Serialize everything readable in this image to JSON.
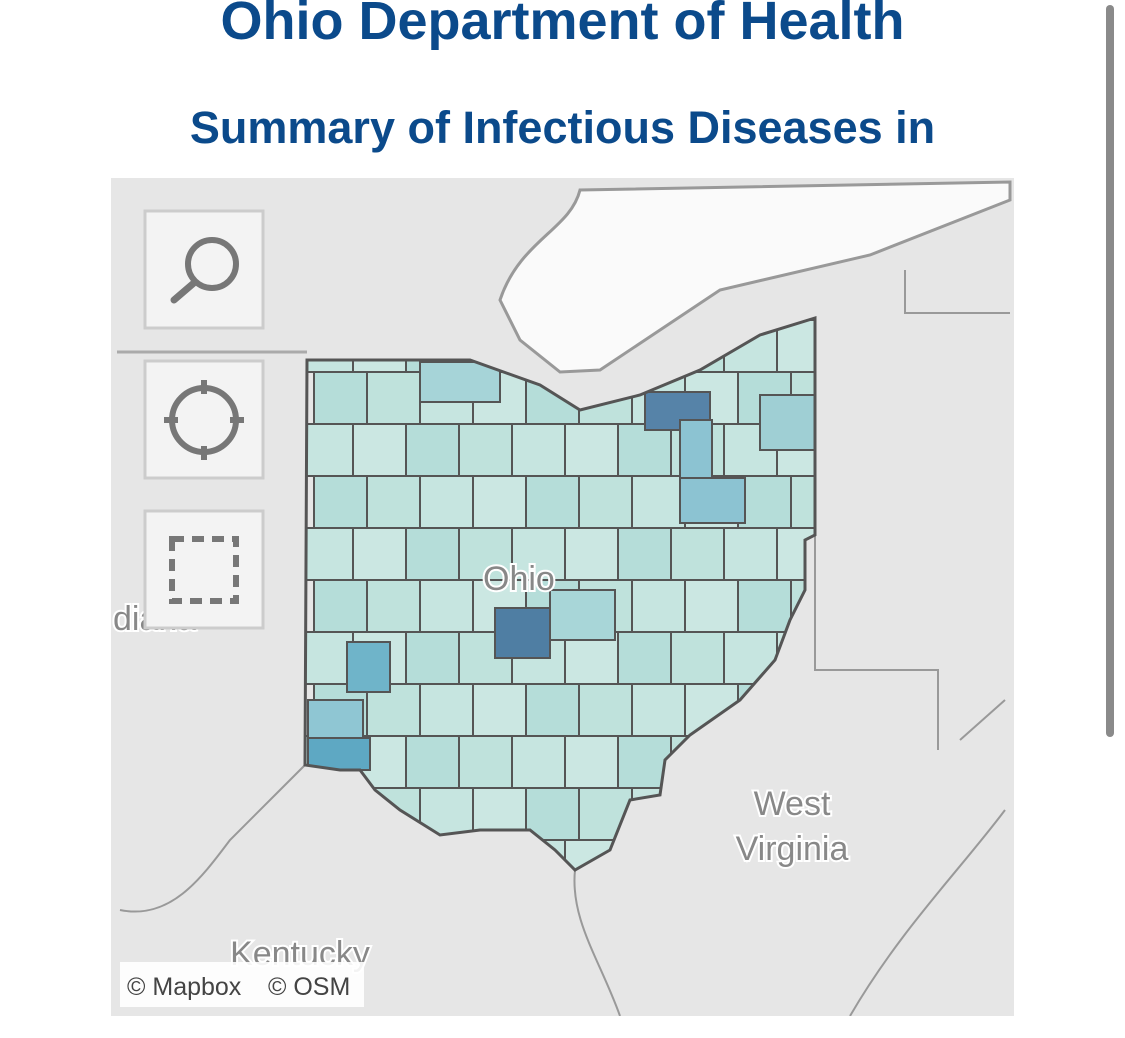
{
  "header": {
    "title": "Ohio Department of Health",
    "subtitle": "Summary of Infectious Diseases in"
  },
  "map": {
    "labels": {
      "state": "Ohio",
      "west": "diana",
      "wv_line1": "West",
      "wv_line2": "Virginia",
      "south": "Kentucky"
    },
    "attribution": [
      "© Mapbox",
      "© OSM"
    ]
  }
}
